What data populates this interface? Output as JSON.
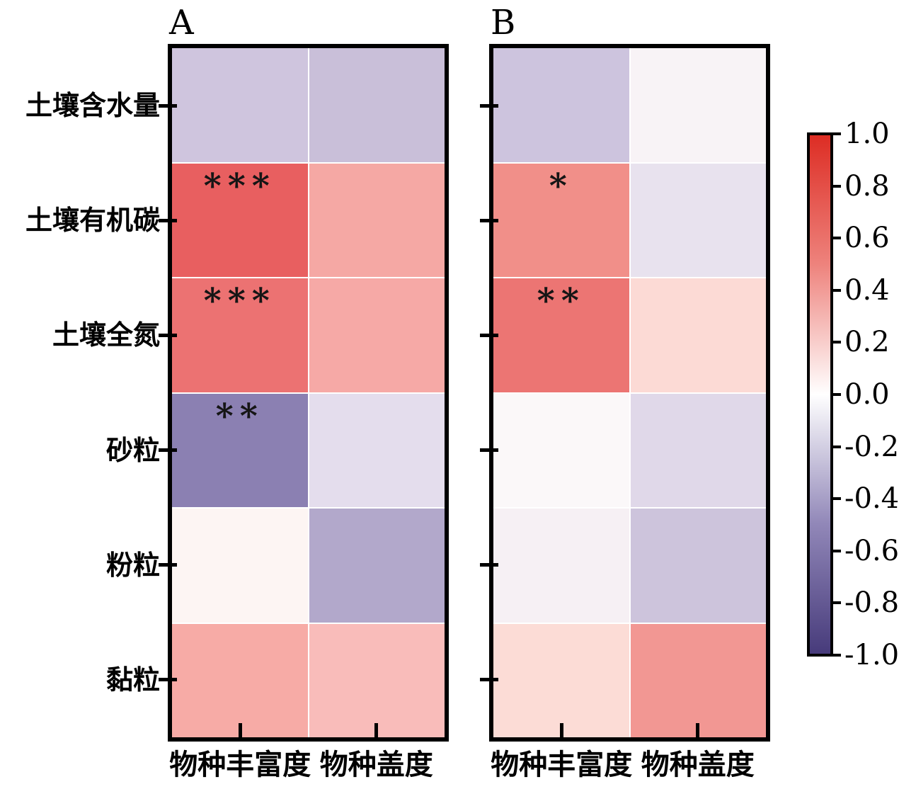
{
  "chart_data": {
    "type": "heatmap",
    "rows": [
      "土壤含水量",
      "土壤有机碳",
      "土壤全氮",
      "砂粒",
      "粉粒",
      "黏粒"
    ],
    "columns": [
      "物种丰富度",
      "物种盖度"
    ],
    "value_range": [
      -1.0,
      1.0
    ],
    "panels": [
      {
        "label": "A",
        "cells": [
          [
            {
              "value": -0.22,
              "color": "#cfc5de",
              "sig": ""
            },
            {
              "value": -0.26,
              "color": "#c9bfd9",
              "sig": ""
            }
          ],
          [
            {
              "value": 0.62,
              "color": "#e85f60",
              "sig": "***"
            },
            {
              "value": 0.35,
              "color": "#f5a8a4",
              "sig": ""
            }
          ],
          [
            {
              "value": 0.55,
              "color": "#ec7272",
              "sig": "***"
            },
            {
              "value": 0.33,
              "color": "#f6a9a6",
              "sig": ""
            }
          ],
          [
            {
              "value": -0.5,
              "color": "#8b80b2",
              "sig": "**"
            },
            {
              "value": -0.12,
              "color": "#e4dded",
              "sig": ""
            }
          ],
          [
            {
              "value": 0.04,
              "color": "#fdf5f3",
              "sig": ""
            },
            {
              "value": -0.33,
              "color": "#b2a8cb",
              "sig": ""
            }
          ],
          [
            {
              "value": 0.33,
              "color": "#f7aba6",
              "sig": ""
            },
            {
              "value": 0.26,
              "color": "#f9bcba",
              "sig": ""
            }
          ]
        ]
      },
      {
        "label": "B",
        "cells": [
          [
            {
              "value": -0.23,
              "color": "#cdc4de",
              "sig": ""
            },
            {
              "value": -0.04,
              "color": "#f8f3f6",
              "sig": ""
            }
          ],
          [
            {
              "value": 0.45,
              "color": "#f18f89",
              "sig": "*"
            },
            {
              "value": -0.1,
              "color": "#e8e2ee",
              "sig": ""
            }
          ],
          [
            {
              "value": 0.52,
              "color": "#ec7573",
              "sig": "**"
            },
            {
              "value": 0.16,
              "color": "#fcdad5",
              "sig": ""
            }
          ],
          [
            {
              "value": 0.02,
              "color": "#fbf8f9",
              "sig": ""
            },
            {
              "value": -0.15,
              "color": "#e0d8e9",
              "sig": ""
            }
          ],
          [
            {
              "value": -0.05,
              "color": "#f6f0f4",
              "sig": ""
            },
            {
              "value": -0.23,
              "color": "#cdc4dc",
              "sig": ""
            }
          ],
          [
            {
              "value": 0.16,
              "color": "#fcdcd6",
              "sig": ""
            },
            {
              "value": 0.42,
              "color": "#f29793",
              "sig": ""
            }
          ]
        ]
      }
    ],
    "colorbar": {
      "tick_labels": [
        "1.0",
        "0.8",
        "0.6",
        "0.4",
        "0.2",
        "0.0",
        "-0.2",
        "-0.4",
        "-0.6",
        "-0.8",
        "-1.0"
      ],
      "gradient_stops": [
        {
          "pos": 0.0,
          "color": "#dd2d24"
        },
        {
          "pos": 0.25,
          "color": "#ee837d"
        },
        {
          "pos": 0.5,
          "color": "#ffffff"
        },
        {
          "pos": 0.75,
          "color": "#9187b8"
        },
        {
          "pos": 1.0,
          "color": "#473b7b"
        }
      ]
    }
  }
}
